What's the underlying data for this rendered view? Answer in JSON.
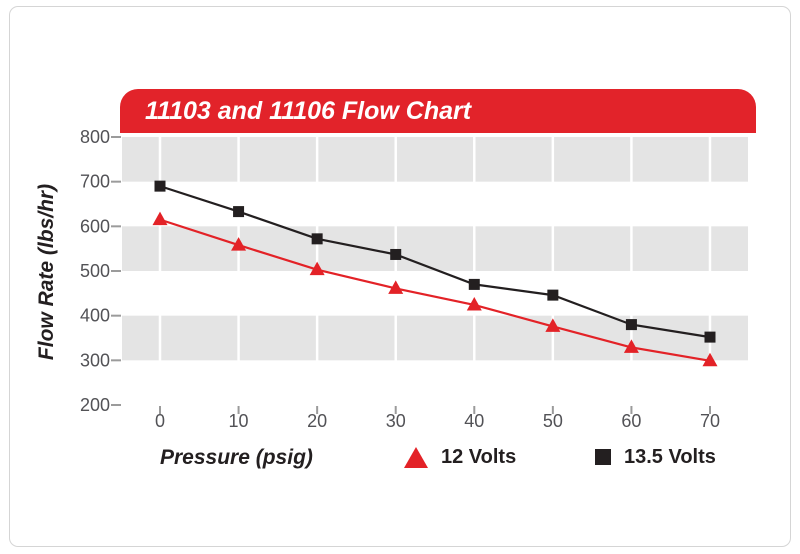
{
  "theme": {
    "header_red": "#e2232a",
    "band_gray": "#e4e4e4",
    "gridline_white": "#ffffff",
    "tick_mark_color": "#9b9b9b",
    "tick_text_color": "#525256",
    "frame_border": "#d5d5d5",
    "title_text_color": "#ffffff"
  },
  "chart_data": {
    "type": "line",
    "title": "11103 and 11106 Flow Chart",
    "xlabel": "Pressure (psig)",
    "ylabel": "Flow Rate (lbs/hr)",
    "x": [
      0,
      10,
      20,
      30,
      40,
      50,
      60,
      70
    ],
    "xtick_labels": [
      "0",
      "10",
      "20",
      "30",
      "40",
      "50",
      "60",
      "70"
    ],
    "ytick_values": [
      800,
      700,
      600,
      500,
      400,
      300,
      200
    ],
    "ytick_labels": [
      "800",
      "700",
      "600",
      "500",
      "400",
      "300",
      "200"
    ],
    "ylim": [
      200,
      800
    ],
    "grid": "horizontal gray bands (300-400, 500-600, 700-800) with white vertical gridlines at each x tick",
    "legend_position": "bottom",
    "series": [
      {
        "name": "12 Volts",
        "marker": "triangle",
        "color": "#e32227",
        "values": [
          615,
          558,
          503,
          461,
          424,
          376,
          329,
          299
        ]
      },
      {
        "name": "13.5 Volts",
        "marker": "square",
        "color": "#231f20",
        "values": [
          690,
          633,
          572,
          537,
          470,
          446,
          380,
          352
        ]
      }
    ]
  }
}
